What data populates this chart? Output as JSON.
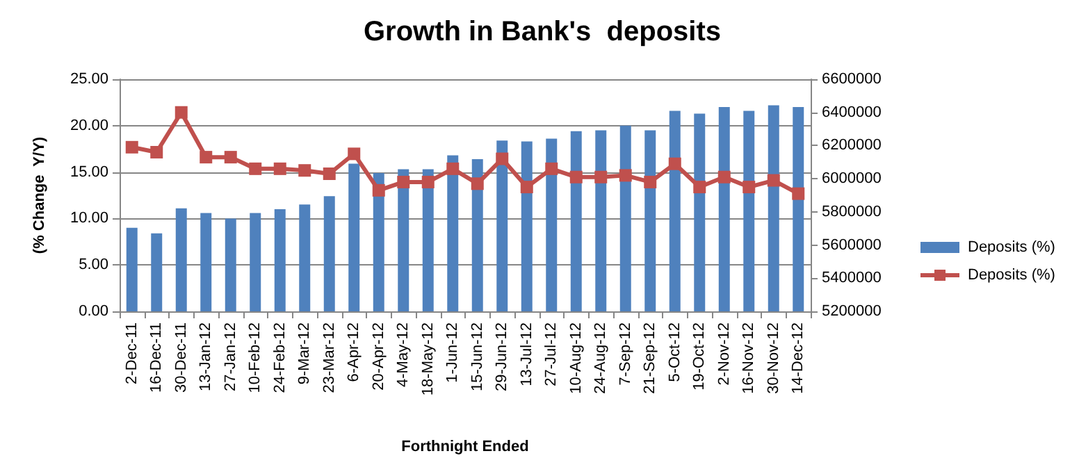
{
  "chart_data": {
    "type": "bar",
    "title": "Growth in Bank's  deposits",
    "xlabel": "Forthnight Ended",
    "ylabel": "(% Change  Y/Y)",
    "categories": [
      "2-Dec-11",
      "16-Dec-11",
      "30-Dec-11",
      "13-Jan-12",
      "27-Jan-12",
      "10-Feb-12",
      "24-Feb-12",
      "9-Mar-12",
      "23-Mar-12",
      "6-Apr-12",
      "20-Apr-12",
      "4-May-12",
      "18-May-12",
      "1-Jun-12",
      "15-Jun-12",
      "29-Jun-12",
      "13-Jul-12",
      "27-Jul-12",
      "10-Aug-12",
      "24-Aug-12",
      "7-Sep-12",
      "21-Sep-12",
      "5-Oct-12",
      "19-Oct-12",
      "2-Nov-12",
      "16-Nov-12",
      "30-Nov-12",
      "14-Dec-12"
    ],
    "series": [
      {
        "name": "Deposits (%)",
        "color": "#4f81bd",
        "values": [
          9.0,
          8.4,
          11.1,
          10.6,
          10.0,
          10.6,
          11.0,
          11.5,
          12.4,
          15.9,
          14.9,
          15.3,
          15.3,
          16.8,
          16.4,
          18.4,
          18.3,
          18.6,
          19.4,
          19.5,
          20.0,
          19.5,
          21.6,
          21.3,
          22.0,
          21.6,
          22.2,
          22.0
        ]
      },
      {
        "name": "Deposits (%)",
        "type": "line",
        "axis": "y2",
        "color": "#c0504d",
        "marker": "square",
        "values": [
          6190000,
          6160000,
          6400000,
          6130000,
          6130000,
          6060000,
          6060000,
          6050000,
          6030000,
          6150000,
          5930000,
          5980000,
          5980000,
          6060000,
          5970000,
          6120000,
          5950000,
          6060000,
          6010000,
          6010000,
          6020000,
          5980000,
          6090000,
          5950000,
          6010000,
          5950000,
          5990000,
          5910000
        ]
      }
    ],
    "ylim": [
      0,
      25
    ],
    "yticks": [
      {
        "value": 0,
        "label": "0.00"
      },
      {
        "value": 5,
        "label": "5.00"
      },
      {
        "value": 10,
        "label": "10.00"
      },
      {
        "value": 15,
        "label": "15.00"
      },
      {
        "value": 20,
        "label": "20.00"
      },
      {
        "value": 25,
        "label": "25.00"
      }
    ],
    "y2lim": [
      5200000,
      6600000
    ],
    "y2ticks": [
      5200000,
      5400000,
      5600000,
      5800000,
      6000000,
      6200000,
      6400000,
      6600000
    ],
    "grid": "y",
    "legend": "right"
  }
}
